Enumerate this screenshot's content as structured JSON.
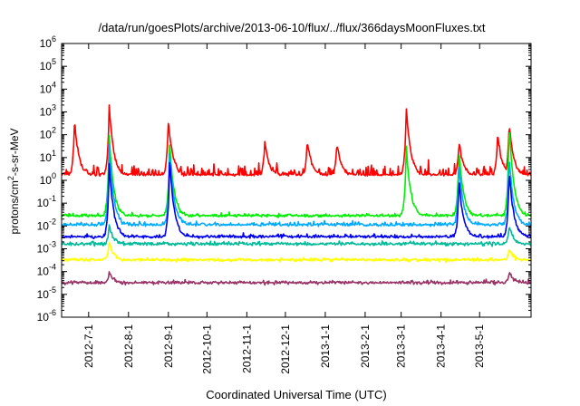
{
  "chart_data": {
    "type": "line",
    "title": "/data/run/goesPlots/archive/2013-06-10/flux/../flux/366daysMoonFluxes.txt",
    "xlabel": "Coordinated Universal Time (UTC)",
    "ylabel": "protons/cm2-s-sr-MeV",
    "ylabel_parts": {
      "base": "protons/cm",
      "sup": "2",
      "rest": "-s-sr-MeV"
    },
    "y_scale": "log",
    "ylim_exponents": [
      -6,
      6
    ],
    "y_ticks": [
      {
        "base": "10",
        "exp": "-6"
      },
      {
        "base": "10",
        "exp": "-5"
      },
      {
        "base": "10",
        "exp": "-4"
      },
      {
        "base": "10",
        "exp": "-3"
      },
      {
        "base": "10",
        "exp": "-2"
      },
      {
        "base": "10",
        "exp": "-1"
      },
      {
        "base": "10",
        "exp": "0"
      },
      {
        "base": "10",
        "exp": "1"
      },
      {
        "base": "10",
        "exp": "2"
      },
      {
        "base": "10",
        "exp": "3"
      },
      {
        "base": "10",
        "exp": "4"
      },
      {
        "base": "10",
        "exp": "5"
      },
      {
        "base": "10",
        "exp": "6"
      }
    ],
    "x_tick_labels": [
      "2012-7-1",
      "2012-8-1",
      "2012-9-1",
      "2012-10-1",
      "2012-11-1",
      "2012-12-1",
      "2013-1-1",
      "2013-2-1",
      "2013-3-1",
      "2013-4-1",
      "2013-5-1"
    ],
    "xlim": [
      "2012-06-10",
      "2013-06-10"
    ],
    "grid": false,
    "legend": "none",
    "series": [
      {
        "color": "#ff0000",
        "baseline": 1.5,
        "x": [
          "2012-06-20",
          "2012-07-17",
          "2012-09-01",
          "2012-11-15",
          "2012-12-18",
          "2013-01-10",
          "2013-03-05",
          "2013-04-15",
          "2013-05-15",
          "2013-05-24"
        ],
        "values": [
          400,
          2000,
          450,
          50,
          60,
          40,
          1500,
          50,
          120,
          300
        ]
      },
      {
        "color": "#00ee00",
        "baseline": 0.025,
        "x": [
          "2012-07-17",
          "2012-09-02",
          "2013-03-05",
          "2013-04-15",
          "2013-05-24"
        ],
        "values": [
          100,
          40,
          30,
          20,
          300
        ]
      },
      {
        "color": "#00aaff",
        "baseline": 0.01,
        "x": [
          "2012-07-17",
          "2012-09-02",
          "2013-04-15",
          "2013-05-24"
        ],
        "values": [
          30,
          20,
          5,
          10
        ]
      },
      {
        "color": "#0000ee",
        "baseline": 0.003,
        "x": [
          "2012-07-17",
          "2012-09-02",
          "2013-04-15",
          "2013-05-24"
        ],
        "values": [
          5,
          10,
          1,
          3
        ]
      },
      {
        "color": "#00bb99",
        "baseline": 0.0015,
        "x": [
          "2012-07-17",
          "2013-05-24"
        ],
        "values": [
          0.01,
          0.01
        ]
      },
      {
        "color": "#ffff00",
        "baseline": 0.0003,
        "x": [
          "2012-07-17",
          "2013-05-24"
        ],
        "values": [
          0.002,
          0.001
        ]
      },
      {
        "color": "#993366",
        "baseline": 3e-05,
        "x": [
          "2012-07-17",
          "2013-05-24"
        ],
        "values": [
          0.0001,
          0.0001
        ]
      }
    ]
  }
}
